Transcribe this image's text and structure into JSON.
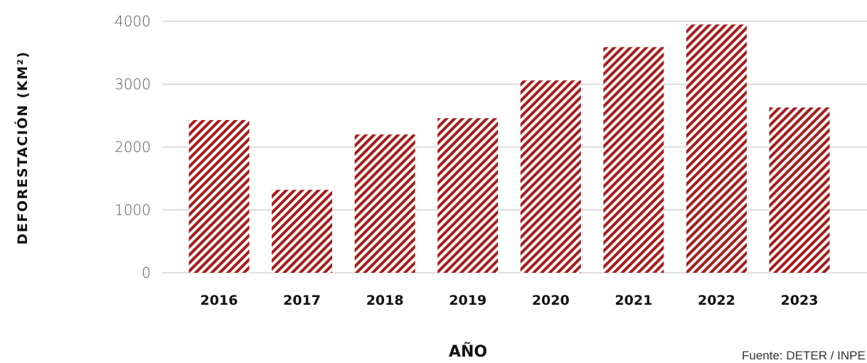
{
  "chart_data": {
    "type": "bar",
    "categories": [
      "2016",
      "2017",
      "2018",
      "2019",
      "2020",
      "2021",
      "2022",
      "2023"
    ],
    "values": [
      2430,
      1320,
      2200,
      2460,
      3060,
      3590,
      3950,
      2630
    ],
    "xlabel": "AÑO",
    "ylabel": "DEFORESTACIÓN (KM²)",
    "ylim": [
      0,
      4000
    ],
    "yticks": [
      "0",
      "1000",
      "2000",
      "3000",
      "4000"
    ],
    "grid": true,
    "colors": {
      "bar_stripe": "#a61b1b",
      "bar_background": "#ffffff",
      "gridline": "#bfbfbf"
    }
  },
  "source": "Fuente: DETER / INPE"
}
